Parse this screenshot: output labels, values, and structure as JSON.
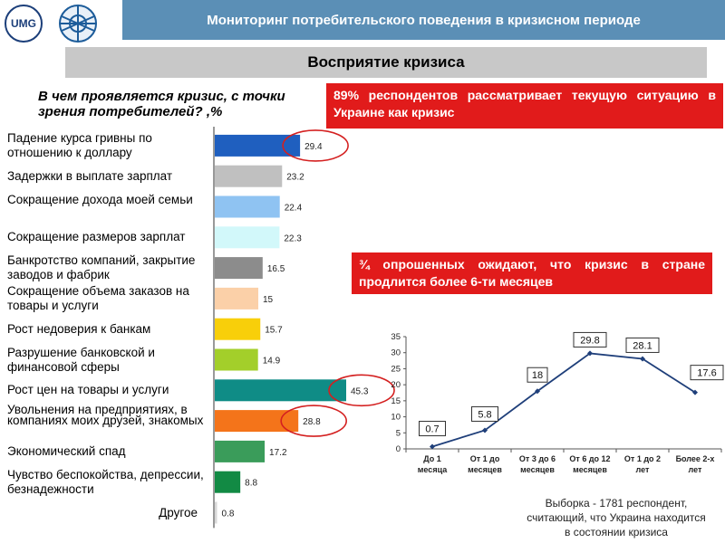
{
  "header": {
    "title": "Мониторинг потребительского поведения в кризисном периоде"
  },
  "logos": {
    "umg_text": "UMG"
  },
  "section": {
    "title": "Восприятие кризиса"
  },
  "question": {
    "text": "В чем проявляется кризис, с точки зрения потребителей? ,%"
  },
  "callouts": {
    "first": "89% респондентов рассматривает текущую ситуацию в Украине как кризис",
    "second": "¾ опрошенных ожидают, что кризис в стране продлится более 6-ти месяцев"
  },
  "sample_note": "Выборка - 1781 респондент, считающий, что Украина находится в состоянии кризиса",
  "chart_data": [
    {
      "type": "bar",
      "orientation": "horizontal",
      "title": "В чем проявляется кризис, с точки зрения потребителей? ,%",
      "categories": [
        "Падение курса гривны по отношению к доллару",
        "Задержки в выплате зарплат",
        "Сокращение дохода моей семьи",
        "Сокращение размеров зарплат",
        "Банкротство компаний, закрытие заводов и фабрик",
        "Сокращение объема заказов на товары и услуги",
        "Рост недоверия к банкам",
        "Разрушение банковской и финансовой сферы",
        "Рост цен на товары и услуги",
        "Увольнения на предприятиях, в компаниях моих друзей, знакомых",
        "Экономический спад",
        "Чувство беспокойства, депрессии, безнадежности",
        "Другое"
      ],
      "values": [
        29.4,
        23.2,
        22.4,
        22.3,
        16.5,
        15,
        15.7,
        14.9,
        45.3,
        28.8,
        17.2,
        8.8,
        0.8
      ],
      "bar_colors": [
        "#1f5fbf",
        "#c0c0c0",
        "#8fc3f2",
        "#d2f8fa",
        "#8c8c8c",
        "#fbd0a8",
        "#f8cf0a",
        "#a3cf2a",
        "#0f8c86",
        "#f4741a",
        "#3a9c5a",
        "#128a44",
        "#d8d8d8"
      ],
      "highlighted": [
        0,
        8,
        9
      ],
      "highlight_color": "#d42020",
      "xlim": [
        0,
        50
      ]
    },
    {
      "type": "line",
      "categories": [
        "До 1 месяца",
        "От 1 до месяцев",
        "От 3 до 6 месяцев",
        "От 6 до 12 месяцев",
        "От 1 до 2 лет",
        "Более 2-х лет"
      ],
      "values": [
        0.7,
        5.8,
        18,
        29.8,
        28.1,
        17.6
      ],
      "ylim": [
        0,
        35
      ],
      "yticks": [
        0,
        5,
        10,
        15,
        20,
        25,
        30,
        35
      ],
      "grid": false,
      "line_color": "#1f3f7a"
    }
  ]
}
